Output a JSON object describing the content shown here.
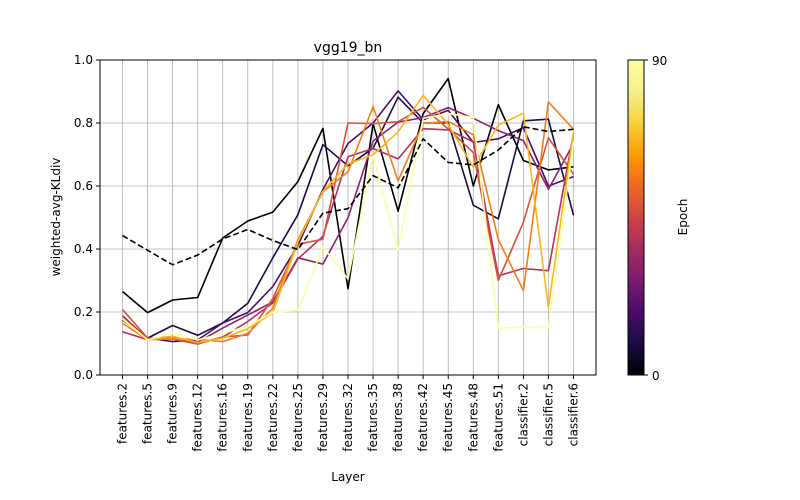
{
  "chart_data": {
    "type": "line",
    "title": "vgg19_bn",
    "xlabel": "Layer",
    "ylabel": "weighted-avg-KLdiv",
    "ylim": [
      0,
      1
    ],
    "grid": true,
    "categories": [
      "features.2",
      "features.5",
      "features.9",
      "features.12",
      "features.16",
      "features.19",
      "features.22",
      "features.25",
      "features.29",
      "features.32",
      "features.35",
      "features.38",
      "features.42",
      "features.45",
      "features.48",
      "features.51",
      "classifier.2",
      "classifier.5",
      "classifier.6"
    ],
    "yticks": [
      "0.0",
      "0.2",
      "0.4",
      "0.6",
      "0.8",
      "1.0"
    ],
    "colorbar": {
      "label": "Epoch",
      "min_label": "0",
      "max_label": "90",
      "colormap": "inferno"
    },
    "series": [
      {
        "epoch_frac": 0.0,
        "color": "#000004",
        "values": [
          0.265,
          0.198,
          0.238,
          0.246,
          0.435,
          0.489,
          0.517,
          0.614,
          0.783,
          0.274,
          0.797,
          0.52,
          0.83,
          0.941,
          0.6,
          0.858,
          0.681,
          0.651,
          0.661
        ]
      },
      {
        "epoch_frac": 0.1,
        "color": "#1b0c41",
        "values": [
          0.18,
          0.117,
          0.157,
          0.126,
          0.165,
          0.228,
          0.372,
          0.509,
          0.731,
          0.664,
          0.72,
          0.882,
          0.8,
          0.801,
          0.539,
          0.496,
          0.807,
          0.812,
          0.507
        ]
      },
      {
        "epoch_frac": 0.25,
        "color": "#4a0c6b",
        "values": [
          0.175,
          0.117,
          0.106,
          0.111,
          0.165,
          0.198,
          0.281,
          0.411,
          0.589,
          0.735,
          0.8,
          0.902,
          0.81,
          0.84,
          0.738,
          0.75,
          0.785,
          0.6,
          0.63
        ]
      },
      {
        "epoch_frac": 0.4,
        "color": "#8b226a",
        "values": [
          0.188,
          0.115,
          0.122,
          0.104,
          0.149,
          0.19,
          0.232,
          0.372,
          0.352,
          0.499,
          0.743,
          0.803,
          0.817,
          0.849,
          0.815,
          0.776,
          0.744,
          0.59,
          0.735
        ]
      },
      {
        "epoch_frac": 0.52,
        "color": "#b6315c",
        "values": [
          0.137,
          0.112,
          0.122,
          0.1,
          0.12,
          0.17,
          0.229,
          0.369,
          0.44,
          0.693,
          0.719,
          0.686,
          0.782,
          0.778,
          0.74,
          0.315,
          0.338,
          0.331,
          0.768
        ]
      },
      {
        "epoch_frac": 0.63,
        "color": "#dc5039",
        "values": [
          0.208,
          0.117,
          0.114,
          0.098,
          0.121,
          0.127,
          0.243,
          0.415,
          0.431,
          0.8,
          0.798,
          0.804,
          0.85,
          0.781,
          0.706,
          0.3,
          0.485,
          0.753,
          0.637
        ]
      },
      {
        "epoch_frac": 0.74,
        "color": "#f57d15",
        "values": [
          0.164,
          0.112,
          0.115,
          0.113,
          0.106,
          0.132,
          0.212,
          0.43,
          0.581,
          0.645,
          0.852,
          0.616,
          0.799,
          0.805,
          0.763,
          0.43,
          0.268,
          0.867,
          0.78
        ]
      },
      {
        "epoch_frac": 0.85,
        "color": "#fbb61a",
        "values": [
          0.182,
          0.112,
          0.123,
          0.103,
          0.117,
          0.147,
          0.197,
          0.423,
          0.583,
          0.67,
          0.699,
          0.772,
          0.888,
          0.795,
          0.659,
          0.793,
          0.831,
          0.215,
          0.77
        ]
      },
      {
        "epoch_frac": 1.0,
        "color": "#fcffa4",
        "values": [
          0.178,
          0.111,
          0.133,
          0.111,
          0.132,
          0.155,
          0.199,
          0.205,
          0.407,
          0.305,
          0.695,
          0.397,
          0.815,
          0.83,
          0.817,
          0.148,
          0.153,
          0.15,
          0.74
        ]
      },
      {
        "dashed": true,
        "color": "#000000",
        "values": [
          0.443,
          0.396,
          0.35,
          0.381,
          0.432,
          0.462,
          0.427,
          0.398,
          0.514,
          0.528,
          0.633,
          0.594,
          0.75,
          0.675,
          0.667,
          0.714,
          0.788,
          0.773,
          0.78
        ]
      }
    ]
  }
}
